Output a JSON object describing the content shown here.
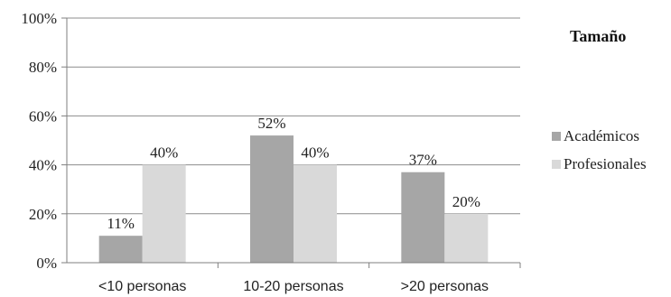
{
  "chart_data": {
    "type": "bar",
    "title": "",
    "xlabel": "",
    "ylabel": "",
    "categories": [
      "<10 personas",
      "10-20 personas",
      ">20 personas"
    ],
    "series": [
      {
        "name": "Académicos",
        "values": [
          11,
          52,
          37
        ],
        "labels": [
          "11%",
          "52%",
          "37%"
        ],
        "color": "#a6a6a6"
      },
      {
        "name": "Profesionales",
        "values": [
          40,
          40,
          20
        ],
        "labels": [
          "40%",
          "40%",
          "20%"
        ],
        "color": "#d9d9d9"
      }
    ],
    "ylim": [
      0,
      100
    ],
    "yticks": [
      "0%",
      "20%",
      "40%",
      "60%",
      "80%",
      "100%"
    ],
    "grid": true,
    "legend": {
      "title": "Tamaño",
      "position": "right"
    }
  }
}
